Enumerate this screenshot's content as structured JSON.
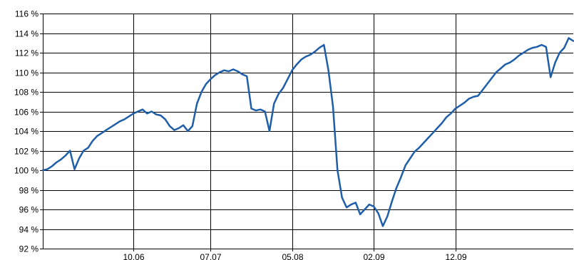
{
  "chart_data": {
    "type": "line",
    "title": "",
    "xlabel": "",
    "ylabel": "",
    "grid": true,
    "line_color": "#1f5ea8",
    "ylim": [
      92,
      116
    ],
    "xlim_day": [
      0,
      117
    ],
    "y_ticks": [
      {
        "value": 92,
        "label": "92 %"
      },
      {
        "value": 94,
        "label": "94 %"
      },
      {
        "value": 96,
        "label": "96 %"
      },
      {
        "value": 98,
        "label": "98 %"
      },
      {
        "value": 100,
        "label": "100 %"
      },
      {
        "value": 102,
        "label": "102 %"
      },
      {
        "value": 104,
        "label": "104 %"
      },
      {
        "value": 106,
        "label": "106 %"
      },
      {
        "value": 108,
        "label": "108 %"
      },
      {
        "value": 110,
        "label": "110 %"
      },
      {
        "value": 112,
        "label": "112 %"
      },
      {
        "value": 114,
        "label": "114 %"
      },
      {
        "value": 116,
        "label": "116 %"
      }
    ],
    "x_ticks": [
      {
        "day": 20,
        "label": "10.06"
      },
      {
        "day": 37,
        "label": "07.07"
      },
      {
        "day": 55,
        "label": "05.08"
      },
      {
        "day": 73,
        "label": "02.09"
      },
      {
        "day": 91,
        "label": "12.09"
      }
    ],
    "series": [
      {
        "points": [
          [
            0,
            100.0
          ],
          [
            1,
            100.1
          ],
          [
            2,
            100.4
          ],
          [
            3,
            100.8
          ],
          [
            4,
            101.1
          ],
          [
            5,
            101.5
          ],
          [
            6,
            102.0
          ],
          [
            7,
            100.1
          ],
          [
            8,
            101.2
          ],
          [
            9,
            102.0
          ],
          [
            10,
            102.3
          ],
          [
            11,
            103.0
          ],
          [
            12,
            103.5
          ],
          [
            13,
            103.8
          ],
          [
            14,
            104.1
          ],
          [
            15,
            104.4
          ],
          [
            16,
            104.7
          ],
          [
            17,
            105.0
          ],
          [
            18,
            105.2
          ],
          [
            19,
            105.5
          ],
          [
            20,
            105.8
          ],
          [
            21,
            106.0
          ],
          [
            22,
            106.2
          ],
          [
            23,
            105.8
          ],
          [
            24,
            106.0
          ],
          [
            25,
            105.7
          ],
          [
            26,
            105.6
          ],
          [
            27,
            105.2
          ],
          [
            28,
            104.5
          ],
          [
            29,
            104.1
          ],
          [
            30,
            104.3
          ],
          [
            31,
            104.6
          ],
          [
            32,
            104.0
          ],
          [
            33,
            104.5
          ],
          [
            34,
            106.8
          ],
          [
            35,
            108.0
          ],
          [
            36,
            108.8
          ],
          [
            37,
            109.3
          ],
          [
            38,
            109.7
          ],
          [
            39,
            110.0
          ],
          [
            40,
            110.2
          ],
          [
            41,
            110.1
          ],
          [
            42,
            110.3
          ],
          [
            43,
            110.1
          ],
          [
            44,
            109.8
          ],
          [
            45,
            109.6
          ],
          [
            46,
            106.3
          ],
          [
            47,
            106.1
          ],
          [
            48,
            106.2
          ],
          [
            49,
            106.0
          ],
          [
            50,
            104.0
          ],
          [
            51,
            106.8
          ],
          [
            52,
            107.8
          ],
          [
            53,
            108.4
          ],
          [
            54,
            109.3
          ],
          [
            55,
            110.2
          ],
          [
            56,
            110.8
          ],
          [
            57,
            111.3
          ],
          [
            58,
            111.6
          ],
          [
            59,
            111.8
          ],
          [
            60,
            112.1
          ],
          [
            61,
            112.5
          ],
          [
            62,
            112.8
          ],
          [
            63,
            110.2
          ],
          [
            64,
            106.5
          ],
          [
            65,
            100.0
          ],
          [
            66,
            97.2
          ],
          [
            67,
            96.2
          ],
          [
            68,
            96.5
          ],
          [
            69,
            96.7
          ],
          [
            70,
            95.5
          ],
          [
            71,
            96.0
          ],
          [
            72,
            96.5
          ],
          [
            73,
            96.3
          ],
          [
            74,
            95.6
          ],
          [
            75,
            94.3
          ],
          [
            76,
            95.3
          ],
          [
            77,
            96.8
          ],
          [
            78,
            98.2
          ],
          [
            79,
            99.3
          ],
          [
            80,
            100.5
          ],
          [
            81,
            101.2
          ],
          [
            82,
            101.9
          ],
          [
            83,
            102.3
          ],
          [
            84,
            102.8
          ],
          [
            85,
            103.3
          ],
          [
            86,
            103.8
          ],
          [
            87,
            104.3
          ],
          [
            88,
            104.8
          ],
          [
            89,
            105.4
          ],
          [
            90,
            105.8
          ],
          [
            91,
            106.3
          ],
          [
            92,
            106.6
          ],
          [
            93,
            106.9
          ],
          [
            94,
            107.3
          ],
          [
            95,
            107.5
          ],
          [
            96,
            107.6
          ],
          [
            97,
            108.2
          ],
          [
            98,
            108.8
          ],
          [
            99,
            109.4
          ],
          [
            100,
            110.0
          ],
          [
            101,
            110.4
          ],
          [
            102,
            110.8
          ],
          [
            103,
            111.0
          ],
          [
            104,
            111.3
          ],
          [
            105,
            111.7
          ],
          [
            106,
            112.0
          ],
          [
            107,
            112.3
          ],
          [
            108,
            112.5
          ],
          [
            109,
            112.6
          ],
          [
            110,
            112.8
          ],
          [
            111,
            112.6
          ],
          [
            112,
            109.5
          ],
          [
            113,
            111.0
          ],
          [
            114,
            112.0
          ],
          [
            115,
            112.5
          ],
          [
            116,
            113.5
          ],
          [
            117,
            113.2
          ]
        ]
      }
    ]
  }
}
